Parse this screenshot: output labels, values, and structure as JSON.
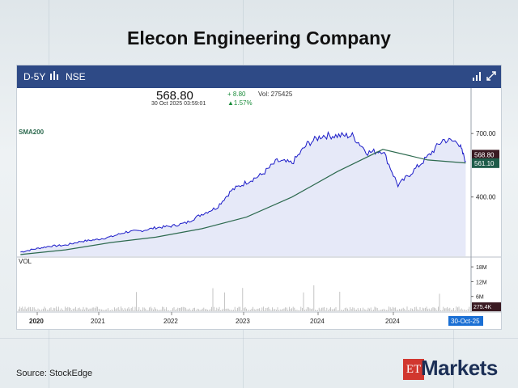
{
  "page": {
    "title": "Elecon Engineering Company",
    "source": "Source:  StockEdge",
    "logo": {
      "et": "ET",
      "markets": "Markets"
    }
  },
  "toolbar": {
    "period": "D-5Y",
    "exchange": "NSE"
  },
  "quote": {
    "price": "568.80",
    "change": "+ 8.80",
    "volume": "Vol: 275425",
    "datetime": "30 Oct 2025 03:59:01",
    "change_pct": "▲1.57%"
  },
  "colors": {
    "toolbar": "#2e4a86",
    "price_line": "#1a1ac8",
    "area_fill": "#e6e9f8",
    "sma_line": "#2d6a4f",
    "price_tag": "#3a1a22",
    "sma_tag": "#1f5c4a",
    "up": "#1a8c3a",
    "date_tag": "#1a6fd4"
  },
  "chart_data": {
    "type": "line",
    "title": "",
    "xlabel": "",
    "ylabel": "",
    "x_tick_labels": [
      "2020",
      "2021",
      "2022",
      "2023",
      "2024",
      "2024"
    ],
    "y_tick_labels": [
      "700.00",
      "400.00"
    ],
    "ylim": [
      120,
      800
    ],
    "sma_label": "SMA200",
    "price_tag": "568.80",
    "sma_tag": "561.10",
    "date_tag": "30-Oct-25",
    "series": [
      {
        "name": "",
        "x": [
          "2020-11",
          "2021-01",
          "2021-03",
          "2021-05",
          "2021-07",
          "2021-09",
          "2021-11",
          "2022-01",
          "2022-03",
          "2022-05",
          "2022-07",
          "2022-09",
          "2022-11",
          "2023-01",
          "2023-03",
          "2023-05",
          "2023-07",
          "2023-09",
          "2023-11",
          "2024-01",
          "2024-03",
          "2024-05",
          "2024-07",
          "2024-09",
          "2024-11",
          "2025-01",
          "2025-03",
          "2025-05",
          "2025-07",
          "2025-09",
          "2025-10"
        ],
        "values": [
          140,
          155,
          168,
          172,
          190,
          198,
          212,
          235,
          240,
          255,
          262,
          278,
          318,
          350,
          430,
          470,
          505,
          570,
          560,
          650,
          690,
          690,
          690,
          610,
          620,
          455,
          520,
          590,
          670,
          660,
          569
        ]
      },
      {
        "name": "SMA200",
        "x": [
          "2020-11",
          "2021-05",
          "2021-11",
          "2022-05",
          "2022-11",
          "2023-05",
          "2023-11",
          "2024-05",
          "2024-11",
          "2025-05",
          "2025-10"
        ],
        "values": [
          128,
          150,
          185,
          210,
          250,
          305,
          400,
          520,
          625,
          575,
          561
        ]
      }
    ],
    "volume": {
      "y_tick_labels": [
        "18M",
        "12M",
        "6M"
      ],
      "ylim": [
        0,
        21
      ],
      "label": "VOL",
      "last_tag": "275.4K"
    }
  }
}
